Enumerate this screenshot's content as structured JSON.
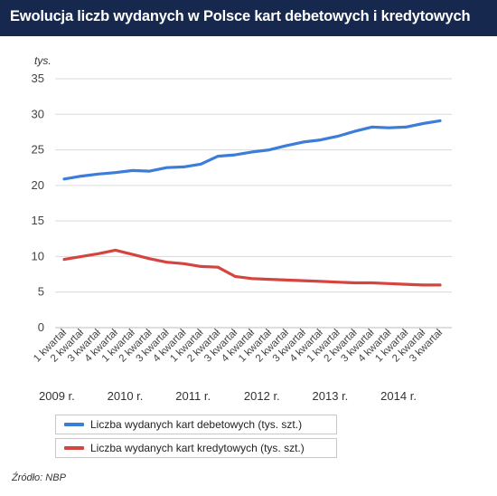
{
  "title": "Ewolucja liczb wydanych w Polsce kart debetowych i kredytowych",
  "source": "Źródło: NBP",
  "colors": {
    "header_bg": "#16284e",
    "debit": "#3b7dd8",
    "credit": "#d5453f",
    "grid": "#d9d9d9",
    "axis_text": "#444444"
  },
  "chart_data": {
    "type": "line",
    "ylabel": "tys.",
    "ylim": [
      0,
      35
    ],
    "yticks": [
      0,
      5,
      10,
      15,
      20,
      25,
      30,
      35
    ],
    "grid": true,
    "legend_position": "bottom-left",
    "categories": [
      "1 kwartał",
      "2 kwartał",
      "3 kwartał",
      "4 kwartał",
      "1 kwartał",
      "2 kwartał",
      "3 kwartał",
      "4 kwartał",
      "1 kwartał",
      "2 kwartał",
      "3 kwartał",
      "4 kwartał",
      "1 kwartał",
      "2 kwartał",
      "3 kwartał",
      "4 kwartał",
      "1 kwartał",
      "2 kwartał",
      "3 kwartał",
      "4 kwartał",
      "1 kwartał",
      "2 kwartał",
      "3 kwartał"
    ],
    "years": [
      {
        "label": "2009 r.",
        "start_index": 0
      },
      {
        "label": "2010 r.",
        "start_index": 4
      },
      {
        "label": "2011 r.",
        "start_index": 8
      },
      {
        "label": "2012 r.",
        "start_index": 12
      },
      {
        "label": "2013 r.",
        "start_index": 16
      },
      {
        "label": "2014 r.",
        "start_index": 20
      }
    ],
    "series": [
      {
        "name": "Liczba wydanych kart debetowych (tys. szt.)",
        "color": "#3b7dd8",
        "values": [
          20.9,
          21.3,
          21.6,
          21.8,
          22.1,
          22.0,
          22.5,
          22.6,
          23.0,
          24.1,
          24.3,
          24.7,
          25.0,
          25.6,
          26.1,
          26.4,
          26.9,
          27.6,
          28.2,
          28.1,
          28.2,
          28.7,
          29.1
        ]
      },
      {
        "name": "Liczba wydanych kart kredytowych (tys. szt.)",
        "color": "#d5453f",
        "values": [
          9.6,
          10.0,
          10.4,
          10.9,
          10.3,
          9.7,
          9.2,
          9.0,
          8.6,
          8.5,
          7.2,
          6.9,
          6.8,
          6.7,
          6.6,
          6.5,
          6.4,
          6.3,
          6.3,
          6.2,
          6.1,
          6.0,
          6.0
        ]
      }
    ]
  }
}
